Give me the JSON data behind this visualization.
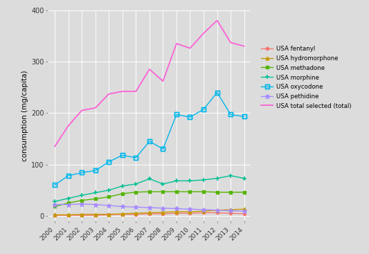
{
  "years": [
    2000,
    2001,
    2002,
    2003,
    2004,
    2005,
    2006,
    2007,
    2008,
    2009,
    2010,
    2011,
    2012,
    2013,
    2014
  ],
  "fentanyl": [
    1,
    1,
    1,
    1,
    2,
    3,
    3,
    4,
    4,
    5,
    5,
    6,
    6,
    5,
    4
  ],
  "hydromorphone": [
    2,
    2,
    3,
    3,
    3,
    4,
    5,
    6,
    7,
    8,
    8,
    9,
    11,
    12,
    13
  ],
  "methadone": [
    18,
    25,
    30,
    33,
    37,
    43,
    46,
    47,
    47,
    47,
    47,
    47,
    46,
    46,
    46
  ],
  "morphine": [
    28,
    34,
    40,
    45,
    50,
    58,
    62,
    72,
    62,
    68,
    68,
    70,
    73,
    78,
    73
  ],
  "oxycodone": [
    60,
    78,
    84,
    88,
    105,
    118,
    113,
    145,
    130,
    197,
    192,
    207,
    240,
    197,
    193
  ],
  "pethidine": [
    22,
    22,
    23,
    22,
    20,
    18,
    17,
    16,
    15,
    14,
    13,
    12,
    11,
    10,
    9
  ],
  "total": [
    135,
    175,
    205,
    210,
    237,
    242,
    242,
    285,
    262,
    335,
    326,
    355,
    380,
    337,
    330
  ],
  "fentanyl_color": "#F8766D",
  "hydromorphone_color": "#C49A00",
  "methadone_color": "#53B400",
  "morphine_color": "#00C094",
  "oxycodone_color": "#00B6EB",
  "pethidine_color": "#A58AFF",
  "total_color": "#FB61D7",
  "bg_color": "#DCDCDC",
  "grid_color": "#FFFFFF",
  "ylabel": "consumption (mg/capita)",
  "ylim": [
    -10,
    400
  ],
  "yticks": [
    0,
    100,
    200,
    300,
    400
  ],
  "legend_labels": [
    "USA fentanyl",
    "USA hydromorphone",
    "USA methadone",
    "USA morphine",
    "USA oxycodone",
    "USA pethidine",
    "USA total selected (total)"
  ]
}
